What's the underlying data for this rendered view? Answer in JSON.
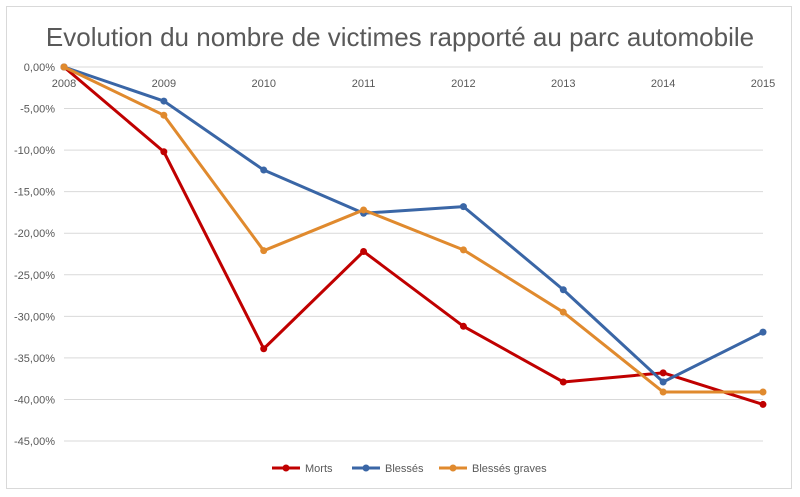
{
  "chart_data": {
    "type": "line",
    "title": "Evolution du nombre de victimes rapporté au parc automobile",
    "x": [
      "2008",
      "2009",
      "2010",
      "2011",
      "2012",
      "2013",
      "2014",
      "2015"
    ],
    "ylim": [
      -45,
      0
    ],
    "yticks": [
      "0,00%",
      "-5,00%",
      "-10,00%",
      "-15,00%",
      "-20,00%",
      "-25,00%",
      "-30,00%",
      "-35,00%",
      "-40,00%",
      "-45,00%"
    ],
    "ytick_values": [
      0,
      -5,
      -10,
      -15,
      -20,
      -25,
      -30,
      -35,
      -40,
      -45
    ],
    "y_unit": "%",
    "grid": "horizontal",
    "legend_position": "bottom",
    "series": [
      {
        "name": "Morts",
        "color": "#c00000",
        "values": [
          0,
          -10.2,
          -33.9,
          -22.2,
          -31.2,
          -37.9,
          -36.8,
          -40.6
        ]
      },
      {
        "name": "Blessés",
        "color": "#3a66a6",
        "values": [
          0,
          -4.1,
          -12.4,
          -17.6,
          -16.8,
          -26.8,
          -37.9,
          -31.9
        ]
      },
      {
        "name": "Blessés graves",
        "color": "#e08a2e",
        "values": [
          0,
          -5.8,
          -22.1,
          -17.2,
          -22.0,
          -29.5,
          -39.1,
          -39.1
        ]
      }
    ]
  }
}
